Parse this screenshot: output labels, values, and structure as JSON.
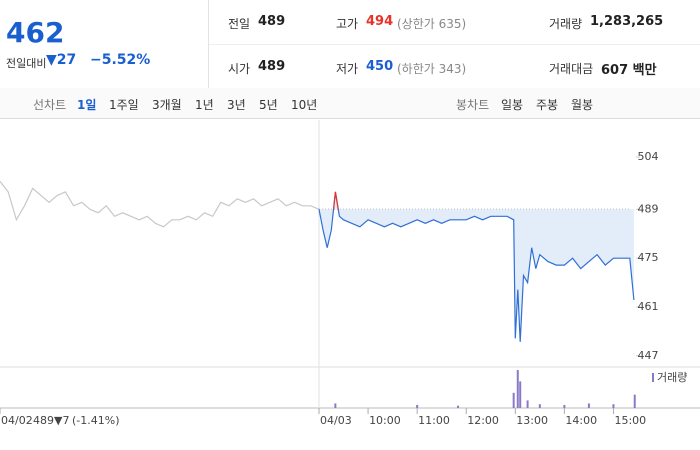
{
  "header": {
    "price": "462",
    "change_label": "전일대비",
    "change": "▼27",
    "change_rate": "−5.52%",
    "stats": [
      [
        {
          "label": "전일",
          "value": "489"
        },
        {
          "label": "고가",
          "value": "494",
          "note": "(상한가 635)"
        },
        {
          "label": "거래량",
          "value": "1,283,265"
        }
      ],
      [
        {
          "label": "시가",
          "value": "489"
        },
        {
          "label": "저가",
          "value": "450",
          "note": "(하한가 343)"
        },
        {
          "label": "거래대금",
          "value": "607 백만"
        }
      ]
    ]
  },
  "tabs": {
    "line_label": "선차트",
    "line_periods": [
      "1일",
      "1주일",
      "3개월",
      "1년",
      "3년",
      "5년",
      "10년"
    ],
    "selected": "1일",
    "candle_label": "봉차트",
    "candle_periods": [
      "일봉",
      "주봉",
      "월봉"
    ]
  },
  "footer": {
    "close": "489",
    "change": "▼7",
    "rate": "(-1.41%)"
  },
  "chart_data": {
    "type": "line",
    "xlim": [
      -390,
      390
    ],
    "xticks": [
      {
        "value": -390,
        "label": "04/02"
      },
      {
        "value": 0,
        "label": "04/03"
      },
      {
        "value": 60,
        "label": "10:00"
      },
      {
        "value": 120,
        "label": "11:00"
      },
      {
        "value": 180,
        "label": "12:00"
      },
      {
        "value": 240,
        "label": "13:00"
      },
      {
        "value": 300,
        "label": "14:00"
      },
      {
        "value": 360,
        "label": "15:00"
      }
    ],
    "ylim": [
      443.8,
      514.6
    ],
    "yticks": [
      447,
      461,
      475,
      489,
      504
    ],
    "grid": false,
    "reference_line": 489,
    "above_color": "#e8322a",
    "series": [
      {
        "color": "#c8c8c8",
        "x": [
          -390,
          -380,
          -370,
          -360,
          -350,
          -340,
          -330,
          -320,
          -310,
          -300,
          -290,
          -280,
          -270,
          -260,
          -250,
          -240,
          -230,
          -220,
          -210,
          -200,
          -190,
          -180,
          -170,
          -160,
          -150,
          -140,
          -130,
          -120,
          -110,
          -100,
          -90,
          -80,
          -70,
          -60,
          -50,
          -40,
          -30,
          -20,
          -10,
          0
        ],
        "values": [
          497,
          494,
          486,
          490,
          495,
          493,
          491,
          493,
          494,
          490,
          491,
          489,
          488,
          490,
          487,
          488,
          487,
          486,
          487,
          485,
          484,
          486,
          486,
          487,
          486,
          488,
          487,
          491,
          490,
          492,
          491,
          492,
          490,
          491,
          492,
          490,
          491,
          490,
          490,
          489
        ]
      },
      {
        "color": "#2f6fd6",
        "fill": "#e3edf9",
        "x": [
          0,
          5,
          10,
          15,
          20,
          25,
          30,
          40,
          50,
          60,
          70,
          80,
          90,
          100,
          110,
          120,
          130,
          140,
          150,
          160,
          170,
          180,
          190,
          200,
          210,
          220,
          230,
          238,
          240,
          243,
          246,
          250,
          255,
          260,
          265,
          270,
          280,
          290,
          300,
          310,
          320,
          330,
          340,
          350,
          360,
          370,
          380,
          385
        ],
        "values": [
          489,
          483,
          478,
          483,
          494,
          487,
          486,
          485,
          484,
          486,
          485,
          484,
          485,
          484,
          485,
          486,
          485,
          486,
          485,
          486,
          486,
          486,
          487,
          486,
          487,
          487,
          487,
          486,
          452,
          466,
          451,
          470,
          468,
          478,
          472,
          476,
          474,
          473,
          473,
          475,
          472,
          474,
          476,
          473,
          475,
          475,
          475,
          463
        ]
      }
    ],
    "volume": {
      "name": "거래량",
      "color": "#8a78c8",
      "x": [
        20,
        120,
        170,
        238,
        243,
        246,
        255,
        270,
        300,
        330,
        360,
        386
      ],
      "values": [
        12,
        8,
        6,
        40,
        100,
        70,
        20,
        10,
        8,
        12,
        10,
        35
      ]
    }
  }
}
